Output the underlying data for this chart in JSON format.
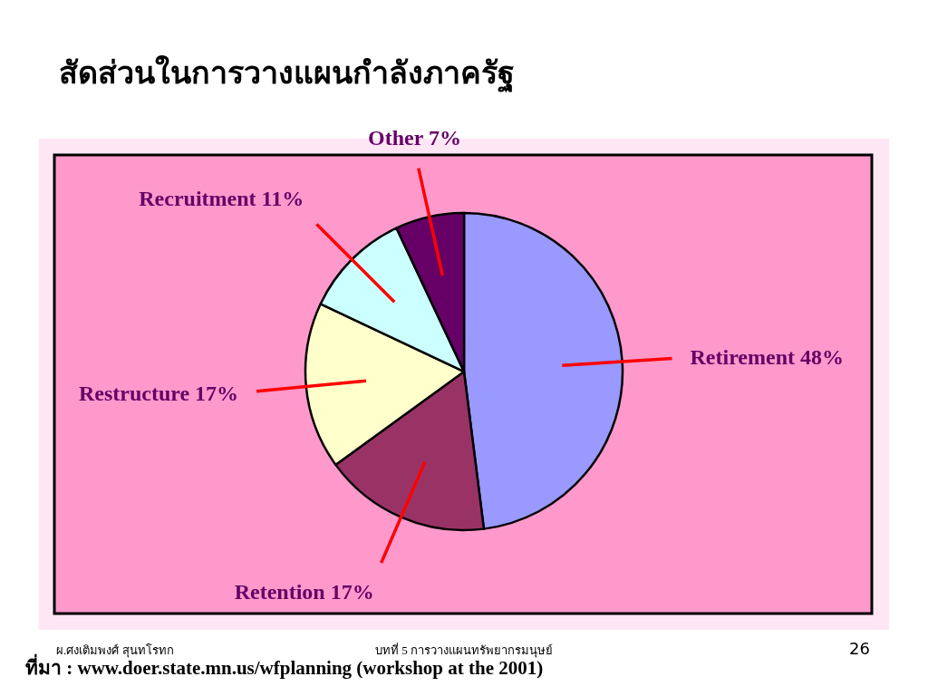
{
  "chart_data": {
    "type": "pie",
    "title": "สัดส่วนในการวางแผนกำลังภาครัฐ",
    "categories": [
      "Retirement",
      "Retention",
      "Restructure",
      "Recruitment",
      "Other"
    ],
    "values": [
      48,
      17,
      17,
      11,
      7
    ],
    "value_labels": [
      "48%",
      "17%",
      "17%",
      "11%",
      "7%"
    ],
    "colors": [
      "#9999ff",
      "#993366",
      "#ffffcc",
      "#ccffff",
      "#660066"
    ],
    "legend": false,
    "annotations": [
      "ผ.ศงเติมพงศ์ สุนทโรทก",
      "บทที่ 5 การวางแผนทรัพยากรมนุษย์",
      "26",
      "ที่มา : www.doer.state.mn.us/wfplanning (workshop at the 2001)"
    ]
  }
}
